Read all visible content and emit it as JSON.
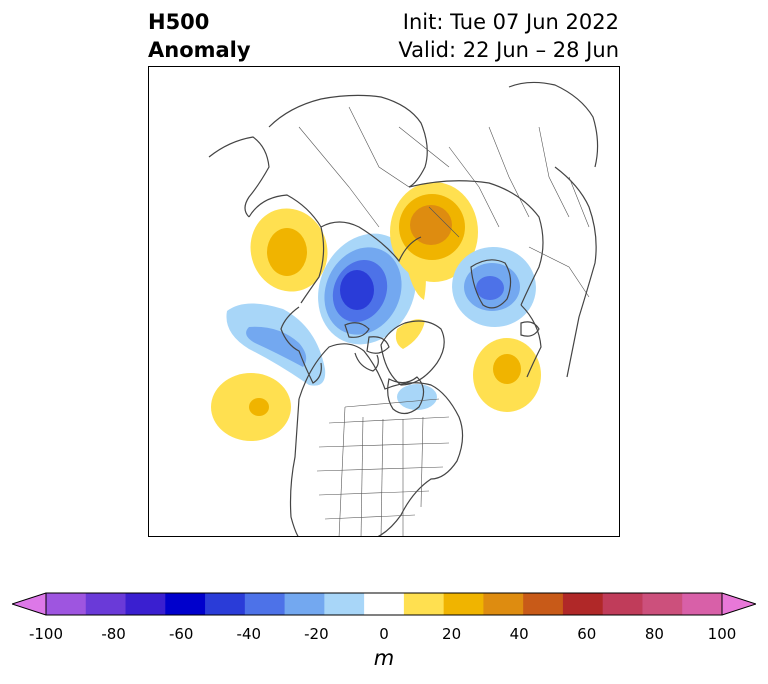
{
  "title": {
    "left_line1": "H500",
    "left_line2": "Anomaly",
    "right_line1": "Init: Tue 07 Jun 2022",
    "right_line2": "Valid: 22 Jun – 28 Jun"
  },
  "colorbar": {
    "unit": "m",
    "ticks": [
      "-100",
      "-80",
      "-60",
      "-40",
      "-20",
      "0",
      "20",
      "40",
      "60",
      "80",
      "100"
    ],
    "levels": [
      -100,
      -90,
      -80,
      -70,
      -60,
      -50,
      -40,
      -30,
      -20,
      -10,
      10,
      20,
      30,
      40,
      50,
      60,
      70,
      80,
      90,
      100
    ],
    "under_color": "#dd78e8",
    "over_color": "#e878d8",
    "colors": [
      "#dd78e8",
      "#9e55e0",
      "#6a3ad8",
      "#3a1fd0",
      "#0000cc",
      "#2a3cd8",
      "#4d72e8",
      "#73a8f0",
      "#a8d6f8",
      "#ffffff",
      "#ffe050",
      "#f0b400",
      "#de8c10",
      "#c85a18",
      "#b02828",
      "#c03c5a",
      "#cc507c",
      "#d860a8",
      "#e878d8"
    ]
  },
  "anomalies": [
    {
      "sign": "positive",
      "peak_m": 30,
      "region": "east-siberia"
    },
    {
      "sign": "negative",
      "peak_m": -50,
      "region": "arctic-ocean"
    },
    {
      "sign": "positive",
      "peak_m": 40,
      "region": "barents-kara"
    },
    {
      "sign": "negative",
      "peak_m": -40,
      "region": "scandinavia"
    },
    {
      "sign": "negative",
      "peak_m": -30,
      "region": "bering-alaska"
    },
    {
      "sign": "positive",
      "peak_m": 20,
      "region": "north-pacific"
    },
    {
      "sign": "positive",
      "peak_m": 20,
      "region": "north-atlantic"
    },
    {
      "sign": "positive",
      "peak_m": 10,
      "region": "greenland"
    },
    {
      "sign": "negative",
      "peak_m": -20,
      "region": "hudson-bay"
    }
  ]
}
